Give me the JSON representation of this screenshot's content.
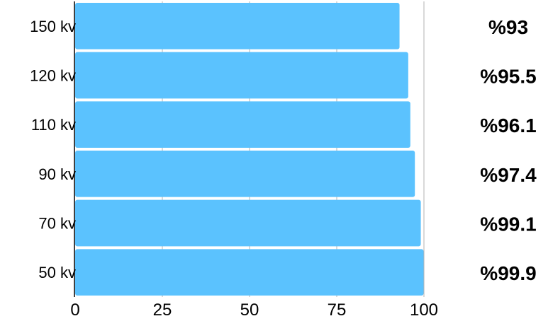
{
  "chart_data": {
    "type": "bar",
    "orientation": "horizontal",
    "categories": [
      "150 kv",
      "120 kv",
      "110 kv",
      "90 kv",
      "70 kv",
      "50 kv"
    ],
    "values": [
      93,
      95.5,
      96.1,
      97.4,
      99.1,
      99.9
    ],
    "value_labels": [
      "%93",
      "%95.5",
      "%96.1",
      "%97.4",
      "%99.1",
      "%99.9"
    ],
    "xlim": [
      0,
      100
    ],
    "x_ticks": [
      "0",
      "25",
      "50",
      "75",
      "100"
    ],
    "grid": true,
    "colors": {
      "bar": "#5bc2fe",
      "bar_edge": "#ffffff",
      "axis": "#000000",
      "grid": "#b3b3b3",
      "text": "#000000"
    }
  }
}
